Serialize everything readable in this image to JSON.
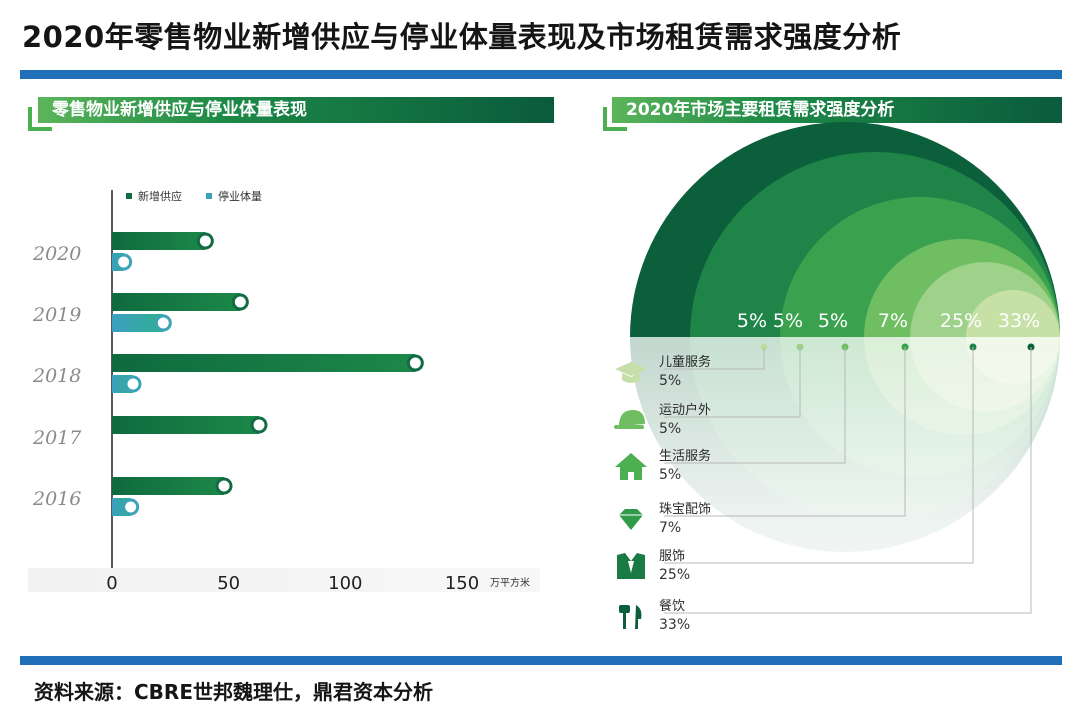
{
  "page": {
    "title": "2020年零售物业新增供应与停业体量表现及市场租赁需求强度分析",
    "source": "资料来源：CBRE世邦魏理仕，鼎君资本分析"
  },
  "left_panel": {
    "title": "零售物业新增供应与停业体量表现"
  },
  "right_panel": {
    "title": "2020年市场主要租赁需求强度分析"
  },
  "chart_data": [
    {
      "type": "bar",
      "orientation": "horizontal",
      "categories": [
        "2020",
        "2019",
        "2018",
        "2017",
        "2016"
      ],
      "series": [
        {
          "name": "新增供应",
          "values": [
            40,
            55,
            130,
            63,
            48
          ],
          "color": "#116b43"
        },
        {
          "name": "停业体量",
          "values": [
            5,
            22,
            9,
            0,
            8
          ],
          "color": "#3aa3b8"
        }
      ],
      "xlim": [
        0,
        150
      ],
      "xticks": [
        0,
        50,
        100,
        150
      ],
      "unit": "万平方米",
      "legend": "top-left",
      "grid": false
    },
    {
      "type": "pie",
      "style": "concentric-semicircles",
      "categories": [
        {
          "name": "儿童服务",
          "value": 5,
          "label": "5%",
          "icon": "graduation-cap-icon",
          "color": "#c6e0a6"
        },
        {
          "name": "运动户外",
          "value": 5,
          "label": "5%",
          "icon": "cap-icon",
          "color": "#9ed189"
        },
        {
          "name": "生活服务",
          "value": 5,
          "label": "5%",
          "icon": "house-icon",
          "color": "#6fbf62"
        },
        {
          "name": "珠宝配饰",
          "value": 7,
          "label": "7%",
          "icon": "diamond-icon",
          "color": "#3aa24f"
        },
        {
          "name": "服饰",
          "value": 25,
          "label": "25%",
          "icon": "suit-icon",
          "color": "#1e8447"
        },
        {
          "name": "餐饮",
          "value": 33,
          "label": "33%",
          "icon": "cutlery-icon",
          "color": "#0c5f3b"
        }
      ],
      "legend": "bottom-left"
    }
  ]
}
